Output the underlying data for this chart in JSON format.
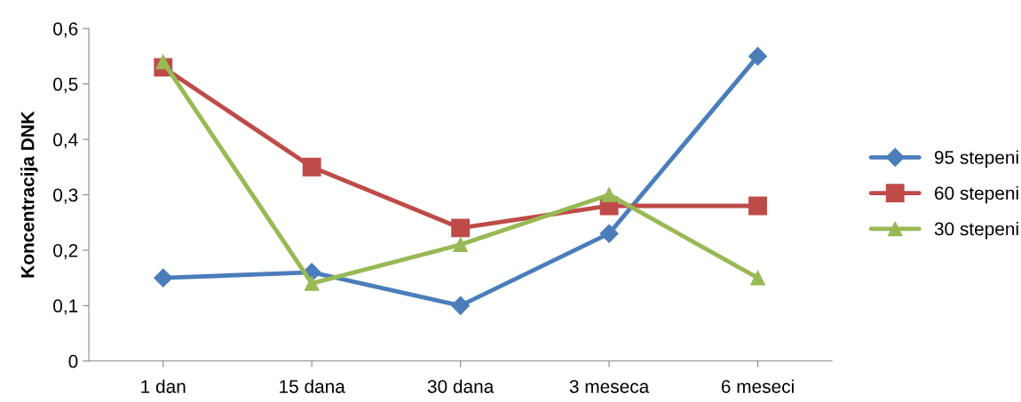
{
  "chart_data": {
    "type": "line",
    "ylabel": "Koncentracija DNK",
    "categories": [
      "1 dan",
      "15 dana",
      "30 dana",
      "3 meseca",
      "6 meseci"
    ],
    "series": [
      {
        "name": "95 stepeni",
        "color": "#4a7ebb",
        "marker": "diamond",
        "values": [
          0.15,
          0.16,
          0.1,
          0.23,
          0.55
        ]
      },
      {
        "name": "60 stepeni",
        "color": "#be4b48",
        "marker": "square",
        "values": [
          0.53,
          0.35,
          0.24,
          0.28,
          0.28
        ]
      },
      {
        "name": "30 stepeni",
        "color": "#98b954",
        "marker": "triangle",
        "values": [
          0.54,
          0.14,
          0.21,
          0.3,
          0.15
        ]
      }
    ],
    "ylim": [
      0,
      0.6
    ],
    "yticks": [
      {
        "value": 0,
        "label": "0"
      },
      {
        "value": 0.1,
        "label": "0,1"
      },
      {
        "value": 0.2,
        "label": "0,2"
      },
      {
        "value": 0.3,
        "label": "0,3"
      },
      {
        "value": 0.4,
        "label": "0,4"
      },
      {
        "value": 0.5,
        "label": "0,5"
      },
      {
        "value": 0.6,
        "label": "0,6"
      }
    ],
    "grid": false,
    "legend": "right",
    "line_style": "solid"
  }
}
